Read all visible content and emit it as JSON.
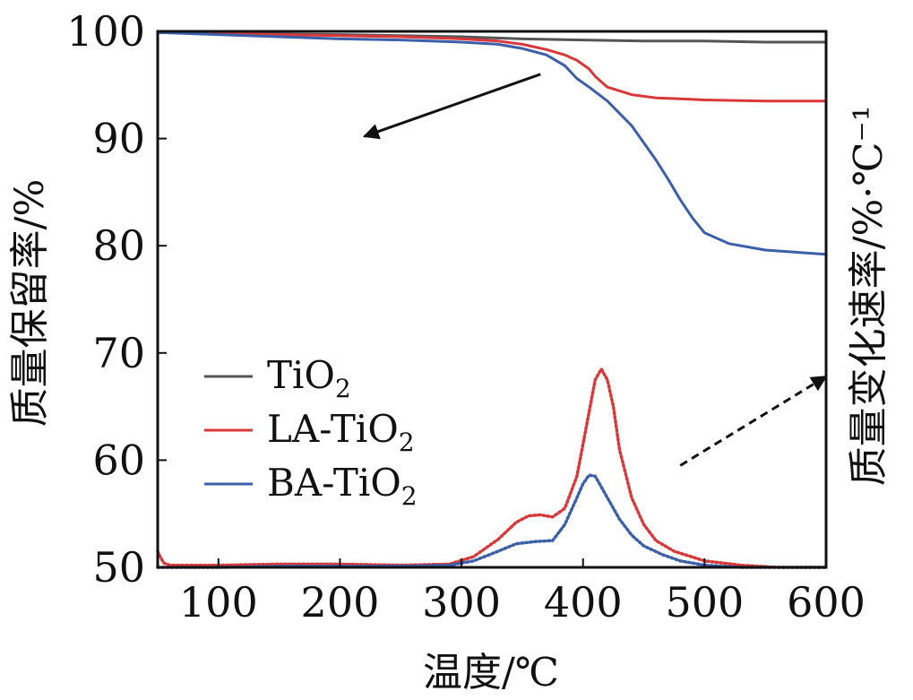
{
  "chart_data": {
    "type": "line",
    "xlabel": "温度/℃",
    "ylabel_left": "质量保留率/%",
    "ylabel_right": "质量变化速率/%·℃⁻¹",
    "xlim": [
      50,
      600
    ],
    "ylim": [
      50,
      100
    ],
    "x_ticks": [
      "100",
      "200",
      "300",
      "400",
      "500",
      "600"
    ],
    "y_ticks": [
      "50",
      "60",
      "70",
      "80",
      "90",
      "100"
    ],
    "legend": {
      "position": "lower-left",
      "entries": [
        {
          "label": "TiO",
          "sub": "2",
          "color": "#555555"
        },
        {
          "label": "LA-TiO",
          "sub": "2",
          "color": "#d9383a"
        },
        {
          "label": "BA-TiO",
          "sub": "2",
          "color": "#3b5fa8"
        }
      ]
    },
    "series": [
      {
        "name": "TiO2",
        "kind": "mass",
        "color": "#555555",
        "x": [
          50,
          100,
          200,
          300,
          350,
          400,
          450,
          500,
          550,
          600
        ],
        "y": [
          99.9,
          99.8,
          99.7,
          99.5,
          99.3,
          99.2,
          99.1,
          99.1,
          99.0,
          99.0
        ]
      },
      {
        "name": "LA-TiO2",
        "kind": "mass",
        "color": "#d9383a",
        "x": [
          50,
          100,
          150,
          200,
          250,
          300,
          330,
          350,
          370,
          385,
          395,
          405,
          410,
          420,
          440,
          460,
          480,
          500,
          550,
          600
        ],
        "y": [
          99.9,
          99.8,
          99.7,
          99.6,
          99.5,
          99.3,
          99.1,
          98.8,
          98.3,
          97.8,
          97.3,
          96.5,
          95.8,
          94.8,
          94.1,
          93.8,
          93.7,
          93.6,
          93.5,
          93.5
        ]
      },
      {
        "name": "BA-TiO2",
        "kind": "mass",
        "color": "#3b5fa8",
        "x": [
          50,
          100,
          150,
          200,
          250,
          300,
          330,
          350,
          370,
          385,
          395,
          405,
          420,
          440,
          460,
          470,
          480,
          490,
          500,
          520,
          550,
          600
        ],
        "y": [
          99.9,
          99.7,
          99.5,
          99.3,
          99.2,
          99.0,
          98.8,
          98.4,
          97.8,
          96.8,
          95.6,
          94.8,
          93.5,
          91.2,
          88.0,
          86.2,
          84.3,
          82.6,
          81.2,
          80.2,
          79.6,
          79.2
        ]
      },
      {
        "name": "LA-TiO2",
        "kind": "rate",
        "color": "#d9383a",
        "x": [
          50,
          52,
          55,
          60,
          100,
          150,
          200,
          250,
          290,
          310,
          330,
          345,
          355,
          365,
          375,
          385,
          395,
          400,
          405,
          410,
          415,
          420,
          425,
          430,
          440,
          450,
          460,
          475,
          500,
          530,
          560,
          600
        ],
        "y": [
          51.5,
          51.0,
          50.4,
          50.2,
          50.2,
          50.3,
          50.3,
          50.2,
          50.3,
          51.0,
          52.6,
          54.2,
          54.8,
          54.9,
          54.7,
          55.5,
          58.5,
          61.5,
          64.5,
          67.5,
          68.5,
          67.5,
          65.0,
          61.0,
          56.5,
          54.0,
          52.5,
          51.5,
          50.6,
          50.2,
          50.0,
          50.0
        ]
      },
      {
        "name": "BA-TiO2",
        "kind": "rate",
        "color": "#3b5fa8",
        "x": [
          50,
          100,
          150,
          200,
          250,
          290,
          310,
          330,
          345,
          360,
          375,
          385,
          395,
          400,
          405,
          410,
          415,
          420,
          430,
          440,
          450,
          465,
          480,
          500,
          530,
          560,
          600
        ],
        "y": [
          50.0,
          50.0,
          50.1,
          50.1,
          50.1,
          50.2,
          50.6,
          51.5,
          52.2,
          52.4,
          52.5,
          54.0,
          56.5,
          57.8,
          58.6,
          58.5,
          57.5,
          56.5,
          54.5,
          53.0,
          52.0,
          51.2,
          50.6,
          50.2,
          50.0,
          50.0,
          50.0
        ]
      }
    ],
    "annotations": [
      {
        "type": "arrow",
        "style": "solid",
        "meaning": "mass curves read on left axis",
        "x": [
          365,
          220
        ],
        "y": [
          96.0,
          90.2
        ]
      },
      {
        "type": "arrow",
        "style": "dashed",
        "meaning": "rate curves read on right axis",
        "x": [
          480,
          600
        ],
        "y": [
          59.5,
          67.8
        ]
      }
    ]
  }
}
